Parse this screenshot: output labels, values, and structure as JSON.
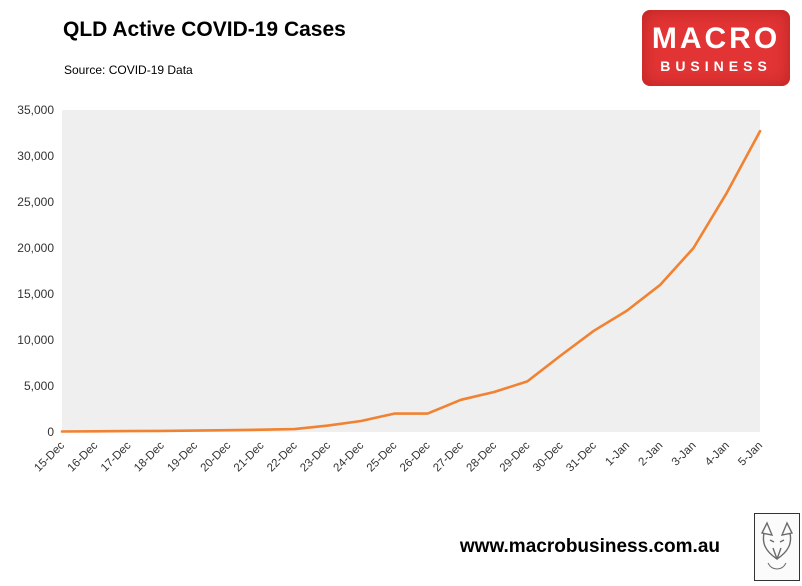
{
  "header": {
    "title": "QLD Active COVID-19 Cases",
    "source": "Source: COVID-19 Data"
  },
  "logo": {
    "line1": "MACRO",
    "line2": "BUSINESS",
    "bg_color": "#e23434"
  },
  "footer": {
    "url": "www.macrobusiness.com.au"
  },
  "chart_data": {
    "type": "line",
    "title": "QLD Active COVID-19 Cases",
    "x": [
      "15-Dec",
      "16-Dec",
      "17-Dec",
      "18-Dec",
      "19-Dec",
      "20-Dec",
      "21-Dec",
      "22-Dec",
      "23-Dec",
      "24-Dec",
      "25-Dec",
      "26-Dec",
      "27-Dec",
      "28-Dec",
      "29-Dec",
      "30-Dec",
      "31-Dec",
      "1-Jan",
      "2-Jan",
      "3-Jan",
      "4-Jan",
      "5-Jan"
    ],
    "series": [
      {
        "name": "QLD Active COVID-19 Cases",
        "color": "#f08232",
        "values": [
          50,
          80,
          100,
          120,
          150,
          200,
          250,
          320,
          700,
          1200,
          2000,
          2000,
          3500,
          4350,
          5500,
          8300,
          11000,
          13200,
          16000,
          20000,
          26000,
          32700
        ]
      }
    ],
    "ylim": [
      0,
      35000
    ],
    "ytick_interval": 5000,
    "plot_bg": "#efefef",
    "grid": false,
    "legend": false,
    "x_label_rotation": -45
  }
}
